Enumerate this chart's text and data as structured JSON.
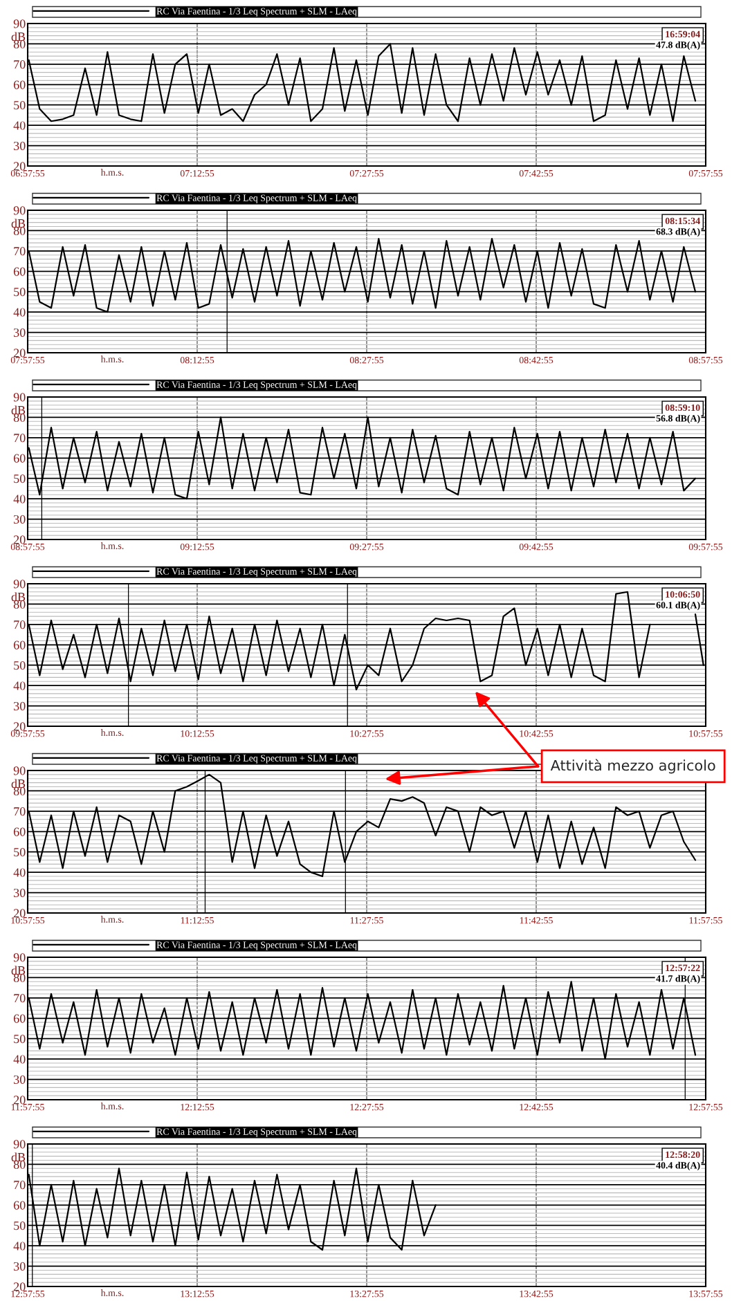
{
  "chart_data": [
    {
      "type": "line",
      "xlabel": "h.m.s.",
      "ylabel": "dB",
      "xlim": [
        6.9653,
        7.9653
      ],
      "ylim": [
        20,
        90
      ],
      "yticks": [
        20,
        30,
        40,
        50,
        60,
        70,
        80,
        90
      ],
      "xticks": [
        {
          "value": 6.9653,
          "label": "06:57:55"
        },
        {
          "value": 7.2153,
          "label": "07:12:55"
        },
        {
          "value": 7.4653,
          "label": "07:27:55"
        },
        {
          "value": 7.7153,
          "label": "07:42:55"
        },
        {
          "value": 7.9653,
          "label": "07:57:55"
        }
      ],
      "grid": true,
      "legend": "top",
      "annotations": [
        "16:59:04",
        "47.8 dB(A)"
      ],
      "series": [
        {
          "name": "RC Via Faentina - 1/3 Leq Spectrum + SLM - LAeq",
          "color": "#000000",
          "x": [
            6.967,
            6.983,
            7.0,
            7.017,
            7.033,
            7.05,
            7.067,
            7.083,
            7.1,
            7.117,
            7.133,
            7.15,
            7.167,
            7.183,
            7.2,
            7.217,
            7.233,
            7.25,
            7.267,
            7.283,
            7.3,
            7.317,
            7.333,
            7.35,
            7.367,
            7.383,
            7.4,
            7.417,
            7.433,
            7.45,
            7.467,
            7.483,
            7.5,
            7.517,
            7.533,
            7.55,
            7.567,
            7.583,
            7.6,
            7.617,
            7.633,
            7.65,
            7.667,
            7.683,
            7.7,
            7.717,
            7.733,
            7.75,
            7.767,
            7.783,
            7.8,
            7.817,
            7.833,
            7.85,
            7.867,
            7.883,
            7.9,
            7.917,
            7.933,
            7.95
          ],
          "values": [
            72,
            48,
            42,
            43,
            45,
            68,
            45,
            76,
            45,
            43,
            42,
            75,
            46,
            70,
            75,
            46,
            70,
            45,
            48,
            42,
            55,
            60,
            75,
            50,
            73,
            42,
            48,
            78,
            47,
            72,
            45,
            74,
            80,
            46,
            78,
            45,
            75,
            50,
            42,
            73,
            50,
            75,
            52,
            78,
            55,
            76,
            55,
            72,
            50,
            74,
            42,
            45,
            72,
            48,
            73,
            45,
            70,
            42,
            74,
            52
          ]
        }
      ]
    },
    {
      "type": "line",
      "xlabel": "h.m.s.",
      "ylabel": "dB",
      "xlim": [
        7.9653,
        8.9653
      ],
      "ylim": [
        20,
        90
      ],
      "yticks": [
        20,
        30,
        40,
        50,
        60,
        70,
        80,
        90
      ],
      "xticks": [
        {
          "value": 7.9653,
          "label": "07:57:55"
        },
        {
          "value": 8.2153,
          "label": "08:12:55"
        },
        {
          "value": 8.4653,
          "label": "08:27:55"
        },
        {
          "value": 8.7153,
          "label": "08:42:55"
        },
        {
          "value": 8.9653,
          "label": "08:57:55"
        }
      ],
      "grid": true,
      "legend": "top",
      "annotations": [
        "08:15:34",
        "68.3 dB(A)"
      ],
      "ref_lines": [
        {
          "axis": "x",
          "value": 8.2594
        }
      ],
      "series": [
        {
          "name": "RC Via Faentina - 1/3 Leq Spectrum + SLM - LAeq",
          "color": "#000000",
          "x": [
            7.967,
            7.983,
            8.0,
            8.017,
            8.033,
            8.05,
            8.067,
            8.083,
            8.1,
            8.117,
            8.133,
            8.15,
            8.167,
            8.183,
            8.2,
            8.217,
            8.233,
            8.25,
            8.267,
            8.283,
            8.3,
            8.317,
            8.333,
            8.35,
            8.367,
            8.383,
            8.4,
            8.417,
            8.433,
            8.45,
            8.467,
            8.483,
            8.5,
            8.517,
            8.533,
            8.55,
            8.567,
            8.583,
            8.6,
            8.617,
            8.633,
            8.65,
            8.667,
            8.683,
            8.7,
            8.717,
            8.733,
            8.75,
            8.767,
            8.783,
            8.8,
            8.817,
            8.833,
            8.85,
            8.867,
            8.883,
            8.9,
            8.917,
            8.933,
            8.95
          ],
          "values": [
            70,
            45,
            42,
            72,
            48,
            73,
            42,
            40,
            68,
            45,
            72,
            43,
            70,
            46,
            74,
            42,
            44,
            73,
            47,
            71,
            45,
            72,
            48,
            75,
            43,
            70,
            46,
            74,
            50,
            72,
            45,
            76,
            47,
            73,
            44,
            70,
            42,
            75,
            48,
            72,
            46,
            76,
            52,
            73,
            45,
            70,
            42,
            74,
            48,
            71,
            44,
            42,
            73,
            50,
            75,
            46,
            70,
            45,
            72,
            50
          ]
        }
      ]
    },
    {
      "type": "line",
      "xlabel": "h.m.s.",
      "ylabel": "dB",
      "xlim": [
        8.9653,
        9.9653
      ],
      "ylim": [
        20,
        90
      ],
      "yticks": [
        20,
        30,
        40,
        50,
        60,
        70,
        80,
        90
      ],
      "xticks": [
        {
          "value": 8.9653,
          "label": "08:57:55"
        },
        {
          "value": 9.2153,
          "label": "09:12:55"
        },
        {
          "value": 9.4653,
          "label": "09:27:55"
        },
        {
          "value": 9.7153,
          "label": "09:42:55"
        },
        {
          "value": 9.9653,
          "label": "09:57:55"
        }
      ],
      "grid": true,
      "legend": "top",
      "annotations": [
        "08:59:10",
        "56.8 dB(A)"
      ],
      "ref_lines": [
        {
          "axis": "x",
          "value": 8.9861
        }
      ],
      "series": [
        {
          "name": "RC Via Faentina - 1/3 Leq Spectrum + SLM - LAeq",
          "color": "#000000",
          "x": [
            8.967,
            8.983,
            9.0,
            9.017,
            9.033,
            9.05,
            9.067,
            9.083,
            9.1,
            9.117,
            9.133,
            9.15,
            9.167,
            9.183,
            9.2,
            9.217,
            9.233,
            9.25,
            9.267,
            9.283,
            9.3,
            9.317,
            9.333,
            9.35,
            9.367,
            9.383,
            9.4,
            9.417,
            9.433,
            9.45,
            9.467,
            9.483,
            9.5,
            9.517,
            9.533,
            9.55,
            9.567,
            9.583,
            9.6,
            9.617,
            9.633,
            9.65,
            9.667,
            9.683,
            9.7,
            9.717,
            9.733,
            9.75,
            9.767,
            9.783,
            9.8,
            9.817,
            9.833,
            9.85,
            9.867,
            9.883,
            9.9,
            9.917,
            9.933,
            9.95
          ],
          "values": [
            65,
            42,
            75,
            45,
            70,
            48,
            73,
            44,
            68,
            46,
            72,
            43,
            70,
            42,
            40,
            73,
            47,
            80,
            45,
            72,
            44,
            70,
            48,
            74,
            43,
            42,
            75,
            50,
            72,
            45,
            80,
            46,
            70,
            43,
            74,
            48,
            71,
            45,
            42,
            73,
            47,
            70,
            44,
            75,
            50,
            72,
            45,
            73,
            44,
            70,
            46,
            74,
            48,
            72,
            45,
            70,
            47,
            73,
            44,
            50
          ]
        }
      ]
    },
    {
      "type": "line",
      "xlabel": "h.m.s.",
      "ylabel": "dB",
      "xlim": [
        9.9653,
        10.9653
      ],
      "ylim": [
        20,
        90
      ],
      "yticks": [
        20,
        30,
        40,
        50,
        60,
        70,
        80,
        90
      ],
      "xticks": [
        {
          "value": 9.9653,
          "label": "09:57:55"
        },
        {
          "value": 10.2153,
          "label": "10:12:55"
        },
        {
          "value": 10.4653,
          "label": "10:27:55"
        },
        {
          "value": 10.7153,
          "label": "10:42:55"
        },
        {
          "value": 10.9653,
          "label": "10:57:55"
        }
      ],
      "grid": true,
      "legend": "top",
      "annotations": [
        "10:06:50",
        "60.1 dB(A)"
      ],
      "ref_lines": [
        {
          "axis": "x",
          "value": 10.1139
        },
        {
          "axis": "x",
          "value": 10.437
        }
      ],
      "series": [
        {
          "name": "RC Via Faentina - 1/3 Leq Spectrum + SLM - LAeq",
          "color": "#000000",
          "x": [
            9.967,
            9.983,
            10.0,
            10.017,
            10.033,
            10.05,
            10.067,
            10.083,
            10.1,
            10.117,
            10.133,
            10.15,
            10.167,
            10.183,
            10.2,
            10.217,
            10.233,
            10.25,
            10.267,
            10.283,
            10.3,
            10.317,
            10.333,
            10.35,
            10.367,
            10.383,
            10.4,
            10.417,
            10.433,
            10.45,
            10.467,
            10.483,
            10.5,
            10.517,
            10.533,
            10.55,
            10.567,
            10.583,
            10.6,
            10.617,
            10.633,
            10.65,
            10.667,
            10.683,
            10.7,
            10.717,
            10.733,
            10.75,
            10.767,
            10.783,
            10.8,
            10.817,
            10.833,
            10.85,
            10.867,
            10.883,
            10.9,
            10.917,
            10.933,
            10.95,
            10.962
          ],
          "values": [
            70,
            45,
            72,
            48,
            65,
            44,
            70,
            46,
            73,
            42,
            68,
            45,
            72,
            47,
            70,
            43,
            74,
            46,
            68,
            42,
            70,
            45,
            72,
            47,
            68,
            44,
            70,
            40,
            65,
            38,
            50,
            45,
            68,
            42,
            50,
            68,
            73,
            72,
            73,
            72,
            42,
            45,
            74,
            78,
            50,
            68,
            45,
            70,
            44,
            68,
            45,
            42,
            85,
            86,
            44,
            70,
            null,
            null,
            null,
            75,
            50
          ]
        }
      ]
    },
    {
      "type": "line",
      "xlabel": "h.m.s.",
      "ylabel": "dB",
      "xlim": [
        10.9653,
        11.9653
      ],
      "ylim": [
        20,
        90
      ],
      "yticks": [
        20,
        30,
        40,
        50,
        60,
        70,
        80,
        90
      ],
      "xticks": [
        {
          "value": 10.9653,
          "label": "10:57:55"
        },
        {
          "value": 11.2153,
          "label": "11:12:55"
        },
        {
          "value": 11.4653,
          "label": "11:27:55"
        },
        {
          "value": 11.7153,
          "label": "11:42:55"
        },
        {
          "value": 11.9653,
          "label": "11:57:55"
        }
      ],
      "grid": true,
      "legend": "top",
      "annotations": [
        "Attività mezzo agricolo"
      ],
      "ref_lines": [
        {
          "axis": "x",
          "value": 11.227
        },
        {
          "axis": "x",
          "value": 11.434
        }
      ],
      "series": [
        {
          "name": "RC Via Faentina - 1/3 Leq Spectrum + SLM - LAeq",
          "color": "#000000",
          "x": [
            10.967,
            10.983,
            11.0,
            11.017,
            11.033,
            11.05,
            11.067,
            11.083,
            11.1,
            11.117,
            11.133,
            11.15,
            11.167,
            11.183,
            11.2,
            11.217,
            11.233,
            11.25,
            11.267,
            11.283,
            11.3,
            11.317,
            11.333,
            11.35,
            11.367,
            11.383,
            11.4,
            11.417,
            11.433,
            11.45,
            11.467,
            11.483,
            11.5,
            11.517,
            11.533,
            11.55,
            11.567,
            11.583,
            11.6,
            11.617,
            11.633,
            11.65,
            11.667,
            11.683,
            11.7,
            11.717,
            11.733,
            11.75,
            11.767,
            11.783,
            11.8,
            11.817,
            11.833,
            11.85,
            11.867,
            11.883,
            11.9,
            11.917,
            11.933,
            11.95
          ],
          "values": [
            70,
            45,
            68,
            42,
            70,
            48,
            72,
            45,
            68,
            65,
            44,
            70,
            50,
            80,
            82,
            85,
            88,
            84,
            45,
            70,
            42,
            68,
            48,
            65,
            44,
            40,
            38,
            70,
            45,
            60,
            65,
            62,
            76,
            75,
            77,
            74,
            58,
            72,
            70,
            50,
            72,
            68,
            70,
            52,
            70,
            45,
            68,
            42,
            65,
            44,
            62,
            42,
            72,
            68,
            70,
            52,
            68,
            70,
            55,
            46
          ]
        }
      ]
    },
    {
      "type": "line",
      "xlabel": "h.m.s.",
      "ylabel": "dB",
      "xlim": [
        11.9653,
        12.9653
      ],
      "ylim": [
        20,
        90
      ],
      "yticks": [
        20,
        30,
        40,
        50,
        60,
        70,
        80,
        90
      ],
      "xticks": [
        {
          "value": 11.9653,
          "label": "11:57:55"
        },
        {
          "value": 12.2153,
          "label": "12:12:55"
        },
        {
          "value": 12.4653,
          "label": "12:27:55"
        },
        {
          "value": 12.7153,
          "label": "12:42:55"
        },
        {
          "value": 12.9653,
          "label": "12:57:55"
        }
      ],
      "grid": true,
      "legend": "top",
      "annotations": [
        "12:57:22",
        "41.7 dB(A)"
      ],
      "ref_lines": [
        {
          "axis": "x",
          "value": 12.935
        }
      ],
      "series": [
        {
          "name": "RC Via Faentina - 1/3 Leq Spectrum + SLM - LAeq",
          "color": "#000000",
          "x": [
            11.967,
            11.983,
            12.0,
            12.017,
            12.033,
            12.05,
            12.067,
            12.083,
            12.1,
            12.117,
            12.133,
            12.15,
            12.167,
            12.183,
            12.2,
            12.217,
            12.233,
            12.25,
            12.267,
            12.283,
            12.3,
            12.317,
            12.333,
            12.35,
            12.367,
            12.383,
            12.4,
            12.417,
            12.433,
            12.45,
            12.467,
            12.483,
            12.5,
            12.517,
            12.533,
            12.55,
            12.567,
            12.583,
            12.6,
            12.617,
            12.633,
            12.65,
            12.667,
            12.683,
            12.7,
            12.717,
            12.733,
            12.75,
            12.767,
            12.783,
            12.8,
            12.817,
            12.833,
            12.85,
            12.867,
            12.883,
            12.9,
            12.917,
            12.933,
            12.95
          ],
          "values": [
            70,
            45,
            72,
            48,
            68,
            42,
            74,
            46,
            70,
            43,
            72,
            48,
            65,
            42,
            70,
            45,
            73,
            44,
            68,
            42,
            70,
            48,
            74,
            45,
            72,
            42,
            75,
            46,
            70,
            44,
            72,
            48,
            68,
            43,
            74,
            45,
            70,
            42,
            72,
            47,
            68,
            44,
            76,
            45,
            70,
            42,
            73,
            48,
            78,
            44,
            70,
            40,
            72,
            46,
            68,
            42,
            74,
            45,
            70,
            42
          ]
        }
      ]
    },
    {
      "type": "line",
      "xlabel": "h.m.s.",
      "ylabel": "dB",
      "xlim": [
        12.9653,
        13.9653
      ],
      "ylim": [
        20,
        90
      ],
      "yticks": [
        20,
        30,
        40,
        50,
        60,
        70,
        80,
        90
      ],
      "xticks": [
        {
          "value": 12.9653,
          "label": "12:57:55"
        },
        {
          "value": 13.2153,
          "label": "13:12:55"
        },
        {
          "value": 13.4653,
          "label": "13:27:55"
        },
        {
          "value": 13.7153,
          "label": "13:42:55"
        },
        {
          "value": 13.9653,
          "label": "13:57:55"
        }
      ],
      "grid": true,
      "legend": "top",
      "annotations": [
        "12:58:20",
        "40.4 dB(A)"
      ],
      "ref_lines": [
        {
          "axis": "x",
          "value": 12.9722
        }
      ],
      "series": [
        {
          "name": "RC Via Faentina - 1/3 Leq Spectrum + SLM - LAeq",
          "color": "#000000",
          "x": [
            12.967,
            12.983,
            13.0,
            13.017,
            13.033,
            13.05,
            13.067,
            13.083,
            13.1,
            13.117,
            13.133,
            13.15,
            13.167,
            13.183,
            13.2,
            13.217,
            13.233,
            13.25,
            13.267,
            13.283,
            13.3,
            13.317,
            13.333,
            13.35,
            13.367,
            13.383,
            13.4,
            13.417,
            13.433,
            13.45,
            13.467,
            13.483,
            13.5,
            13.517,
            13.533,
            13.55,
            13.567
          ],
          "values": [
            75,
            40,
            70,
            42,
            72,
            40,
            68,
            44,
            78,
            45,
            72,
            42,
            70,
            40,
            76,
            43,
            74,
            45,
            68,
            42,
            72,
            46,
            75,
            48,
            70,
            42,
            38,
            72,
            45,
            78,
            42,
            70,
            44,
            38,
            72,
            45,
            60
          ]
        }
      ]
    }
  ]
}
